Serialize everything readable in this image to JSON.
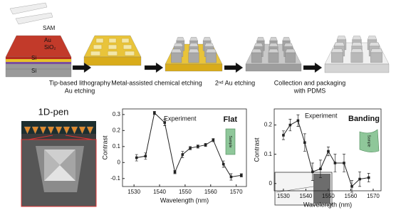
{
  "process": {
    "layers": [
      "SAM",
      "Au",
      "SiO₂",
      "Si",
      "Si"
    ],
    "steps": [
      {
        "lines": [
          "Tip-based lithography",
          "Au etching"
        ]
      },
      {
        "lines": [
          "Metal-assisted chemical etching"
        ]
      },
      {
        "lines": [
          "2ⁿᵈ Au etching"
        ]
      },
      {
        "lines": [
          "Collection and packaging",
          "with PDMS"
        ]
      }
    ]
  },
  "pen": {
    "title": "1D-pen"
  },
  "chart_data": [
    {
      "type": "line",
      "xlabel": "Wavelength (nm)",
      "ylabel": "Contrast",
      "annotations": [
        "Experiment",
        "Flat",
        "Sample"
      ],
      "x": [
        1531,
        1534.5,
        1538,
        1542,
        1546,
        1549,
        1552,
        1555,
        1558,
        1561,
        1565,
        1568,
        1572
      ],
      "series": [
        {
          "color": "#222222",
          "values": [
            0.03,
            0.04,
            0.31,
            0.25,
            -0.06,
            0.05,
            0.09,
            0.1,
            0.11,
            0.14,
            -0.01,
            -0.09,
            -0.08
          ],
          "errors": [
            0.02,
            0.02,
            0.01,
            0.02,
            0.01,
            0.02,
            0.01,
            0.01,
            0.01,
            0.01,
            0.02,
            0.02,
            0.01
          ]
        }
      ],
      "xlim": [
        1525.5,
        1574
      ],
      "ylim": [
        -0.15,
        0.335
      ],
      "xticks": [
        1530,
        1540,
        1550,
        1560,
        1570
      ],
      "yticks": [
        -0.1,
        0,
        0.1,
        0.2,
        0.3
      ]
    },
    {
      "type": "line",
      "xlabel": "Wavelength (nm)",
      "ylabel": "Contrast",
      "annotations": [
        "Experiment",
        "Banding",
        "Sample"
      ],
      "x": [
        1530,
        1533,
        1536.5,
        1539.5,
        1543,
        1546.5,
        1550,
        1553,
        1557,
        1560.5,
        1564,
        1568
      ],
      "series": [
        {
          "color": "#222222",
          "values": [
            0.165,
            0.2,
            0.215,
            0.14,
            0.04,
            0.05,
            0.11,
            0.07,
            0.07,
            -0.01,
            0.015,
            0.02
          ],
          "errors": [
            0.015,
            0.02,
            0.02,
            0.03,
            0.03,
            0.03,
            0.015,
            0.03,
            0.03,
            0.02,
            0.025,
            0.015
          ]
        }
      ],
      "xlim": [
        1525.9,
        1573.5
      ],
      "ylim": [
        -0.025,
        0.255
      ],
      "xticks": [
        1530,
        1540,
        1550,
        1560,
        1570
      ],
      "yticks": [
        0,
        0.1,
        0.2
      ]
    }
  ]
}
